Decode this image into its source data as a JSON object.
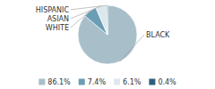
{
  "chart_data": {
    "type": "pie",
    "categories": [
      "BLACK",
      "WHITE",
      "ASIAN",
      "HISPANIC"
    ],
    "values": [
      86.1,
      7.4,
      6.1,
      0.4
    ],
    "value_labels": [
      "86.1%",
      "7.4%",
      "6.1%",
      "0.4%"
    ],
    "colors": [
      "#a8bfc9",
      "#6b9db5",
      "#dde8ee",
      "#2e5f7a"
    ],
    "legend": "bottom"
  }
}
